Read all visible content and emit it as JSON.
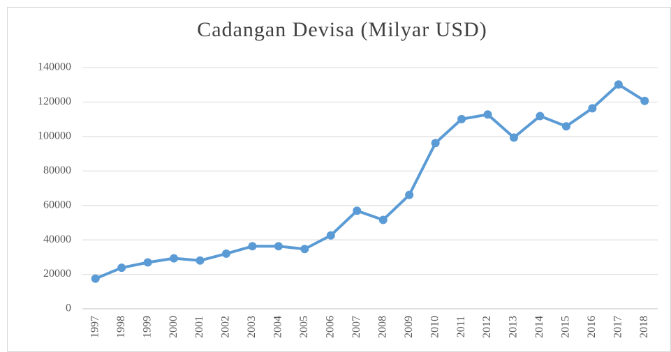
{
  "chart_data": {
    "type": "line",
    "title": "Cadangan Devisa (Milyar USD)",
    "categories": [
      "1997",
      "1998",
      "1999",
      "2000",
      "2001",
      "2002",
      "2003",
      "2004",
      "2005",
      "2006",
      "2007",
      "2008",
      "2009",
      "2010",
      "2011",
      "2012",
      "2013",
      "2014",
      "2015",
      "2016",
      "2017",
      "2018"
    ],
    "series": [
      {
        "name": "Cadangan Devisa",
        "color": "#5b9bd5",
        "values": [
          17500,
          23800,
          26900,
          29300,
          28000,
          32000,
          36300,
          36300,
          34700,
          42600,
          56900,
          51600,
          66100,
          96200,
          110100,
          112800,
          99400,
          111900,
          105900,
          116400,
          130200,
          120700
        ]
      }
    ],
    "ylim": [
      0,
      140000
    ],
    "yticks": [
      0,
      20000,
      40000,
      60000,
      80000,
      100000,
      120000,
      140000
    ],
    "grid": true
  }
}
